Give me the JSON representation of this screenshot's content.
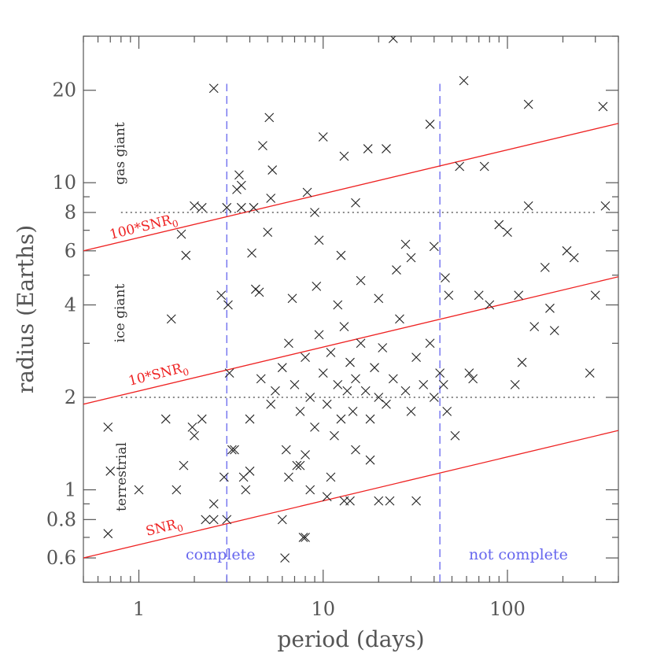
{
  "colors": {
    "axis": "#555555",
    "points": "#222222",
    "snr_lines": "#ee2222",
    "completeness": "#6666ee",
    "class_boundaries": "#888888"
  },
  "chart_data": {
    "type": "scatter",
    "marker": "x",
    "xscale": "log",
    "yscale": "log",
    "xlabel": "period (days)",
    "ylabel": "radius (Earths)",
    "xlim": [
      0.5,
      400
    ],
    "ylim": [
      0.5,
      30
    ],
    "x_ticks": [
      1,
      10,
      100
    ],
    "x_tick_labels": [
      "1",
      "10",
      "100"
    ],
    "y_ticks": [
      0.6,
      0.8,
      1,
      2,
      4,
      6,
      8,
      10,
      20
    ],
    "y_tick_labels": [
      "0.6",
      "0.8",
      "1",
      "2",
      "4",
      "6",
      "8",
      "10",
      "20"
    ],
    "grid": false,
    "reference_lines": [
      {
        "label": "SNR",
        "label_sub": "0",
        "x": [
          0.5,
          400
        ],
        "y": [
          0.6,
          1.56
        ]
      },
      {
        "label": "10*SNR",
        "label_sub": "0",
        "x": [
          0.5,
          400
        ],
        "y": [
          1.9,
          4.94
        ]
      },
      {
        "label": "100*SNR",
        "label_sub": "0",
        "x": [
          0.5,
          400
        ],
        "y": [
          6.0,
          15.6
        ]
      }
    ],
    "completeness_lines": [
      {
        "x": 3,
        "y_range": [
          0.5,
          21
        ]
      },
      {
        "x": 43,
        "y_range": [
          0.5,
          21
        ]
      }
    ],
    "class_boundaries": [
      {
        "y": 2,
        "x_range": [
          0.8,
          300
        ]
      },
      {
        "y": 8,
        "x_range": [
          0.8,
          300
        ]
      }
    ],
    "region_labels": [
      "terrestrial",
      "ice giant",
      "gas giant"
    ],
    "completeness_labels": [
      "complete",
      "not complete"
    ],
    "points": [
      [
        0.68,
        1.6
      ],
      [
        0.7,
        1.15
      ],
      [
        0.68,
        0.72
      ],
      [
        1.0,
        1.0
      ],
      [
        1.4,
        1.7
      ],
      [
        1.5,
        3.6
      ],
      [
        1.6,
        1.0
      ],
      [
        1.7,
        6.8
      ],
      [
        1.8,
        5.8
      ],
      [
        1.75,
        1.2
      ],
      [
        1.95,
        1.6
      ],
      [
        2.0,
        1.5
      ],
      [
        2.0,
        8.4
      ],
      [
        2.2,
        8.3
      ],
      [
        2.2,
        1.7
      ],
      [
        2.3,
        0.8
      ],
      [
        2.55,
        0.9
      ],
      [
        2.55,
        0.8
      ],
      [
        2.55,
        20.3
      ],
      [
        2.8,
        4.3
      ],
      [
        2.9,
        1.1
      ],
      [
        3.0,
        0.8
      ],
      [
        3.0,
        8.3
      ],
      [
        3.05,
        4.0
      ],
      [
        3.1,
        2.4
      ],
      [
        3.2,
        1.35
      ],
      [
        3.3,
        1.35
      ],
      [
        3.4,
        9.5
      ],
      [
        3.5,
        10.6
      ],
      [
        3.6,
        9.8
      ],
      [
        3.6,
        8.3
      ],
      [
        3.7,
        1.1
      ],
      [
        3.8,
        1.0
      ],
      [
        4.0,
        1.15
      ],
      [
        4.1,
        5.9
      ],
      [
        4.2,
        8.3
      ],
      [
        4.3,
        4.5
      ],
      [
        4.5,
        4.4
      ],
      [
        4.7,
        13.2
      ],
      [
        5.0,
        6.9
      ],
      [
        5.1,
        16.3
      ],
      [
        5.2,
        8.9
      ],
      [
        5.3,
        11.0
      ],
      [
        6.0,
        0.8
      ],
      [
        6.2,
        0.6
      ],
      [
        6.3,
        1.35
      ],
      [
        6.5,
        1.1
      ],
      [
        7.2,
        1.2
      ],
      [
        7.5,
        1.2
      ],
      [
        7.8,
        0.7
      ],
      [
        8.0,
        0.7
      ],
      [
        8.2,
        9.3
      ],
      [
        8.5,
        1.0
      ],
      [
        9.0,
        8.0
      ],
      [
        9.5,
        6.5
      ],
      [
        10.0,
        14.1
      ],
      [
        10.5,
        0.95
      ],
      [
        11.0,
        1.1
      ],
      [
        12.5,
        5.8
      ],
      [
        13.0,
        12.2
      ],
      [
        13.0,
        0.92
      ],
      [
        14.0,
        0.92
      ],
      [
        15.0,
        8.6
      ],
      [
        17.5,
        12.9
      ],
      [
        20.0,
        0.92
      ],
      [
        22.0,
        12.9
      ],
      [
        23.0,
        0.92
      ],
      [
        24.0,
        29.5
      ],
      [
        28.0,
        6.3
      ],
      [
        30.0,
        5.7
      ],
      [
        32.0,
        0.92
      ],
      [
        38.0,
        15.5
      ],
      [
        40.0,
        6.2
      ],
      [
        46.0,
        4.9
      ],
      [
        48.0,
        4.3
      ],
      [
        52.0,
        1.5
      ],
      [
        55.0,
        11.3
      ],
      [
        58.0,
        21.5
      ],
      [
        62.0,
        2.4
      ],
      [
        65.0,
        2.3
      ],
      [
        70.0,
        4.3
      ],
      [
        75.0,
        11.3
      ],
      [
        80.0,
        4.0
      ],
      [
        90.0,
        7.3
      ],
      [
        100.0,
        6.9
      ],
      [
        110.0,
        2.2
      ],
      [
        115.0,
        4.3
      ],
      [
        120.0,
        2.6
      ],
      [
        130.0,
        8.4
      ],
      [
        130.0,
        18.0
      ],
      [
        140.0,
        3.4
      ],
      [
        160.0,
        5.3
      ],
      [
        170.0,
        3.9
      ],
      [
        180.0,
        3.3
      ],
      [
        210.0,
        6.0
      ],
      [
        230.0,
        5.7
      ],
      [
        280.0,
        2.4
      ],
      [
        300.0,
        4.3
      ],
      [
        330.0,
        17.7
      ],
      [
        340.0,
        8.4
      ],
      [
        5.5,
        2.1
      ],
      [
        6.0,
        2.5
      ],
      [
        6.5,
        3.0
      ],
      [
        7.0,
        2.2
      ],
      [
        7.5,
        1.8
      ],
      [
        8.0,
        2.7
      ],
      [
        8.5,
        2.0
      ],
      [
        9.0,
        1.6
      ],
      [
        9.5,
        3.2
      ],
      [
        10.0,
        2.4
      ],
      [
        10.5,
        1.9
      ],
      [
        11.0,
        2.8
      ],
      [
        12.0,
        2.2
      ],
      [
        12.5,
        1.7
      ],
      [
        13.0,
        3.4
      ],
      [
        13.5,
        2.1
      ],
      [
        14.0,
        2.6
      ],
      [
        14.5,
        1.8
      ],
      [
        15.0,
        2.3
      ],
      [
        16.0,
        3.0
      ],
      [
        17.0,
        2.1
      ],
      [
        18.0,
        1.7
      ],
      [
        19.0,
        2.5
      ],
      [
        20.0,
        2.0
      ],
      [
        21.0,
        2.9
      ],
      [
        22.0,
        1.9
      ],
      [
        24.0,
        2.3
      ],
      [
        26.0,
        3.6
      ],
      [
        28.0,
        2.1
      ],
      [
        30.0,
        1.8
      ],
      [
        32.0,
        2.7
      ],
      [
        35.0,
        2.2
      ],
      [
        38.0,
        3.0
      ],
      [
        40.0,
        2.0
      ],
      [
        43.0,
        2.4
      ],
      [
        45.0,
        2.2
      ],
      [
        47.0,
        1.8
      ],
      [
        6.8,
        4.2
      ],
      [
        9.2,
        4.6
      ],
      [
        12.0,
        4.0
      ],
      [
        16.0,
        4.8
      ],
      [
        20.0,
        4.2
      ],
      [
        25.0,
        5.2
      ],
      [
        8.0,
        1.3
      ],
      [
        11.5,
        1.5
      ],
      [
        15.0,
        1.35
      ],
      [
        18.0,
        1.25
      ],
      [
        4.0,
        1.7
      ],
      [
        4.6,
        2.3
      ],
      [
        5.2,
        1.9
      ]
    ]
  }
}
